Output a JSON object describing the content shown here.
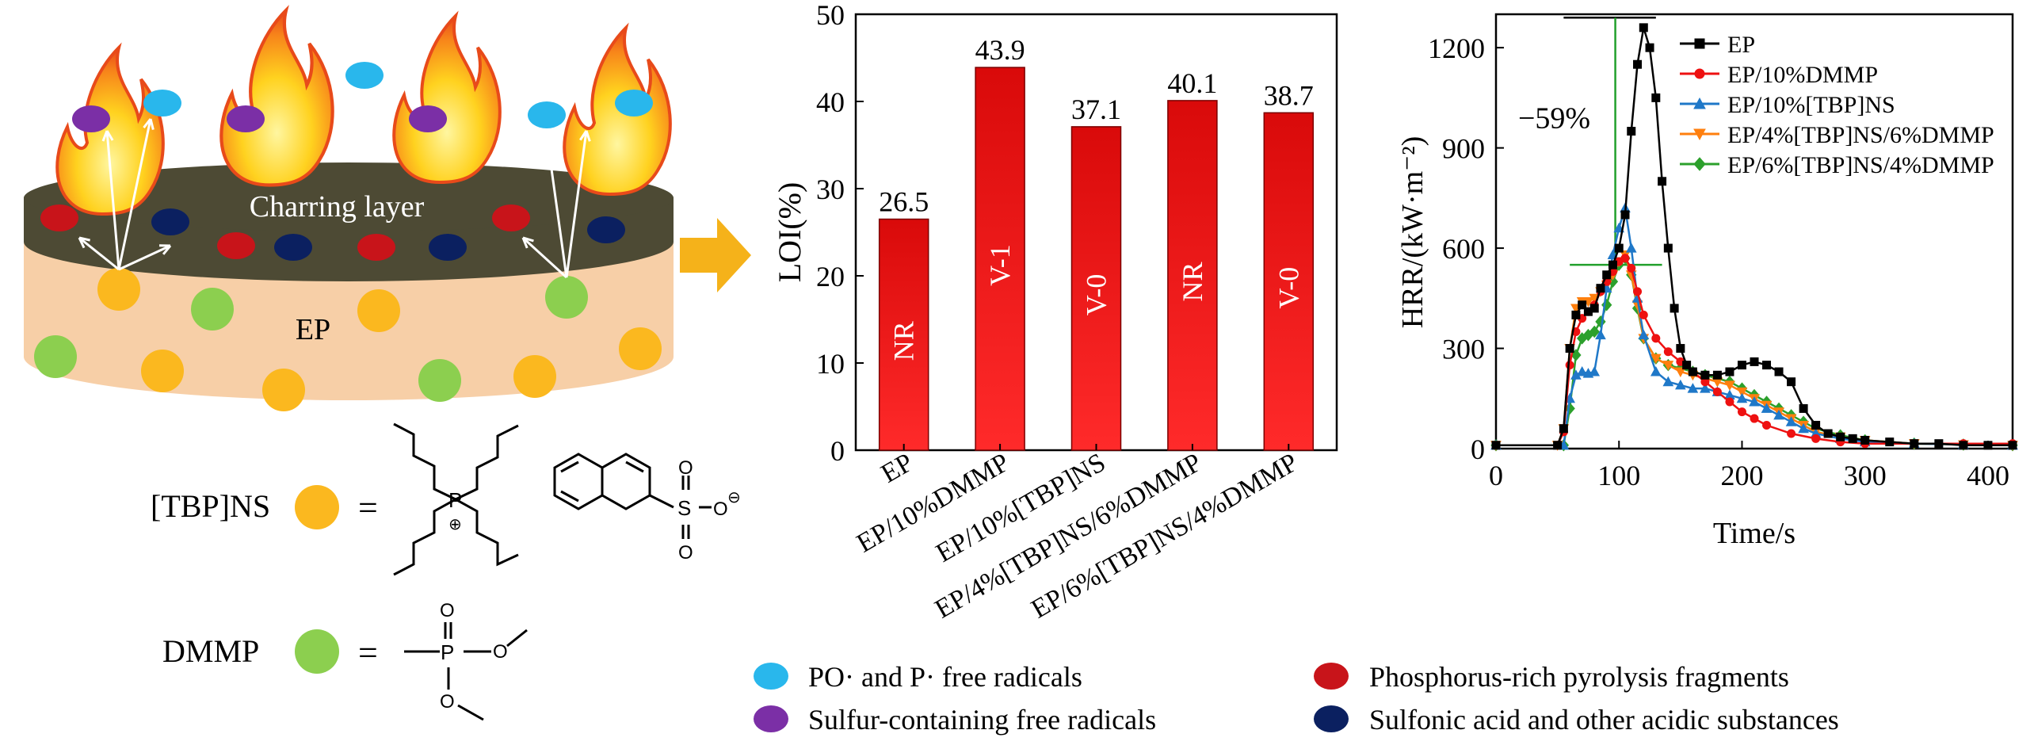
{
  "scheme": {
    "charring_label": "Charring layer",
    "matrix_label": "EP",
    "tbpns_label": "[TBP]NS",
    "dmmp_label": "DMMP",
    "equals": "=",
    "colors": {
      "po_radical": "#29b7ec",
      "s_radical": "#7b2fa6",
      "p_fragment": "#c8141a",
      "acid": "#0b2060",
      "tbpns": "#fbb81f",
      "dmmp": "#8ccf4f",
      "char": "#4d4a34",
      "matrix": "#f7cfa7",
      "arrow": "#f5b21a"
    }
  },
  "legend": {
    "items": [
      {
        "icon": "blue-dot-icon",
        "color": "#29b7ec",
        "label": "PO· and P· free radicals"
      },
      {
        "icon": "purple-dot-icon",
        "color": "#7b2fa6",
        "label": "Sulfur-containing free radicals"
      },
      {
        "icon": "red-dot-icon",
        "color": "#c8141a",
        "label": "Phosphorus-rich pyrolysis fragments"
      },
      {
        "icon": "navy-dot-icon",
        "color": "#0b2060",
        "label": "Sulfonic acid and other acidic substances"
      }
    ]
  },
  "chart_data": [
    {
      "type": "bar",
      "ylabel": "LOI(%)",
      "ylim": [
        0,
        50
      ],
      "yticks": [
        0,
        10,
        20,
        30,
        40,
        50
      ],
      "categories": [
        "EP",
        "EP/10%DMMP",
        "EP/10%[TBP]NS",
        "EP/4%[TBP]NS/6%DMMP",
        "EP/6%[TBP]NS/4%DMMP"
      ],
      "values": [
        26.5,
        43.9,
        37.1,
        40.1,
        38.7
      ],
      "value_labels": [
        "26.5",
        "43.9",
        "37.1",
        "40.1",
        "38.7"
      ],
      "ul94": [
        "NR",
        "V-1",
        "V-0",
        "NR",
        "V-0"
      ],
      "bar_color": "#ee1111"
    },
    {
      "type": "line",
      "xlabel": "Time/s",
      "ylabel": "HRR/(kW·m⁻²)",
      "xlim": [
        0,
        420
      ],
      "ylim": [
        0,
        1300
      ],
      "xticks": [
        0,
        100,
        200,
        300,
        400
      ],
      "yticks": [
        0,
        300,
        600,
        900,
        1200
      ],
      "annotation": "−59%",
      "reference_level_high": 1290,
      "reference_level_low": 550,
      "reference_time": 97,
      "series": [
        {
          "name": "EP",
          "color": "#000000",
          "marker": "square",
          "x": [
            0,
            50,
            55,
            60,
            65,
            70,
            75,
            80,
            85,
            90,
            95,
            100,
            105,
            110,
            115,
            120,
            125,
            130,
            135,
            140,
            145,
            150,
            155,
            160,
            170,
            180,
            190,
            200,
            210,
            220,
            230,
            240,
            250,
            260,
            270,
            280,
            290,
            300,
            320,
            340,
            360,
            380,
            400,
            420
          ],
          "y": [
            10,
            10,
            60,
            300,
            400,
            430,
            410,
            420,
            480,
            520,
            550,
            600,
            700,
            950,
            1150,
            1260,
            1200,
            1050,
            800,
            600,
            420,
            300,
            250,
            230,
            220,
            220,
            230,
            250,
            260,
            250,
            230,
            200,
            120,
            70,
            45,
            35,
            30,
            25,
            20,
            15,
            15,
            10,
            10,
            10
          ]
        },
        {
          "name": "EP/10%DMMP",
          "color": "#ee1111",
          "marker": "circle",
          "x": [
            0,
            50,
            55,
            60,
            65,
            70,
            75,
            80,
            85,
            90,
            95,
            100,
            105,
            110,
            115,
            120,
            130,
            140,
            150,
            160,
            170,
            180,
            190,
            200,
            210,
            220,
            240,
            260,
            280,
            300,
            340,
            380,
            420
          ],
          "y": [
            10,
            10,
            50,
            250,
            350,
            390,
            410,
            430,
            470,
            500,
            530,
            560,
            570,
            540,
            470,
            400,
            330,
            290,
            260,
            230,
            200,
            170,
            140,
            110,
            90,
            70,
            45,
            30,
            20,
            15,
            15,
            15,
            15
          ]
        },
        {
          "name": "EP/10%[TBP]NS",
          "color": "#1f78c8",
          "marker": "triangle",
          "x": [
            0,
            55,
            60,
            65,
            70,
            75,
            80,
            85,
            90,
            95,
            100,
            105,
            110,
            115,
            120,
            130,
            140,
            150,
            160,
            170,
            180,
            190,
            200,
            210,
            220,
            230,
            240,
            250,
            260,
            280,
            300,
            340,
            380,
            420
          ],
          "y": [
            10,
            10,
            150,
            220,
            230,
            225,
            230,
            340,
            480,
            580,
            660,
            720,
            600,
            450,
            340,
            230,
            200,
            190,
            180,
            180,
            170,
            160,
            150,
            140,
            120,
            100,
            80,
            60,
            45,
            30,
            20,
            15,
            12,
            10
          ]
        },
        {
          "name": "EP/4%[TBP]NS/6%DMMP",
          "color": "#ff7f0e",
          "marker": "triangle-down",
          "x": [
            0,
            50,
            55,
            60,
            65,
            70,
            75,
            80,
            85,
            90,
            95,
            100,
            105,
            110,
            115,
            120,
            130,
            140,
            150,
            160,
            170,
            180,
            190,
            200,
            210,
            220,
            230,
            240,
            250,
            260,
            280,
            300,
            340,
            380,
            420
          ],
          "y": [
            10,
            10,
            60,
            300,
            420,
            440,
            440,
            450,
            470,
            490,
            520,
            560,
            580,
            520,
            430,
            330,
            270,
            250,
            230,
            220,
            210,
            200,
            190,
            170,
            150,
            130,
            110,
            90,
            70,
            50,
            35,
            25,
            15,
            12,
            10
          ]
        },
        {
          "name": "EP/6%[TBP]NS/4%DMMP",
          "color": "#2ca02c",
          "marker": "diamond",
          "x": [
            0,
            55,
            60,
            65,
            70,
            75,
            80,
            85,
            90,
            95,
            100,
            105,
            110,
            115,
            120,
            130,
            140,
            150,
            160,
            170,
            180,
            190,
            200,
            210,
            220,
            230,
            240,
            250,
            260,
            280,
            300,
            340,
            380,
            420
          ],
          "y": [
            10,
            10,
            120,
            280,
            330,
            340,
            350,
            380,
            430,
            500,
            550,
            570,
            520,
            420,
            330,
            270,
            250,
            240,
            230,
            220,
            210,
            200,
            180,
            160,
            140,
            120,
            100,
            80,
            60,
            40,
            25,
            15,
            12,
            10
          ]
        }
      ]
    }
  ]
}
